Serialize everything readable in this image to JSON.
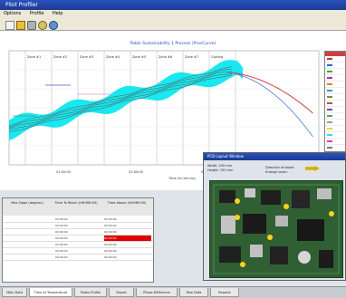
{
  "window": {
    "title": "Pilot Profiler"
  },
  "menu": [
    "Options",
    "Profile",
    "Help"
  ],
  "chart": {
    "title": "Pablo Sustainability 1 Process (ProcCurve)",
    "zone_labels": [
      "Zone #1",
      "Zone #2",
      "Zone #3",
      "Zone #4",
      "Zone #5",
      "Zone #6",
      "Zone #7",
      "Cooling"
    ],
    "x_ticks": [
      "01:00:00",
      "02:00:00",
      "03:00:00"
    ],
    "x_label": "Time (hh:mm:ss)",
    "band_color": "#00e5ee",
    "profile_color": "#555555"
  },
  "legend": {
    "head_color": "#d04040",
    "colors": [
      "#cc3333",
      "#3366cc",
      "#33aa33",
      "#aa33aa",
      "#cc8833",
      "#3399aa",
      "#888833",
      "#aa5555",
      "#5555aa",
      "#55aa55",
      "#999999",
      "#dddd33",
      "#33dddd",
      "#dd33dd",
      "#777777",
      "#bbbbbb"
    ]
  },
  "table": {
    "headers": [
      "Max Slope (deg/sec)",
      "Time To Reach (HH:MM:SS)",
      "Time Above (HH:MM:SS)"
    ],
    "rows": [
      [
        "",
        "00:00:00",
        "00:00:00"
      ],
      [
        "",
        "00:00:00",
        "00:00:00"
      ],
      [
        "",
        "00:00:00",
        "00:00:00"
      ],
      [
        "",
        "00:00:00",
        "00:00:00"
      ],
      [
        "",
        "00:00:00",
        "00:00:00"
      ],
      [
        "",
        "00:00:00",
        "00:00:00"
      ],
      [
        "",
        "00:00:00",
        "00:00:00"
      ]
    ],
    "highlight_row": 3,
    "highlight_color": "#e00000"
  },
  "inset": {
    "title": "PCB Layout Window",
    "width_label": "Width:",
    "width_value": "250 mm",
    "height_label": "Height:",
    "height_value": "150 mm",
    "direction_text": "Direction of board through oven:",
    "board_color": "#2f5f33"
  },
  "tabs": [
    "Main Data",
    "Time at Temperature",
    "Peaks Profile",
    "Slopes",
    "Phase Difference",
    "Raw Data",
    "Reports"
  ]
}
